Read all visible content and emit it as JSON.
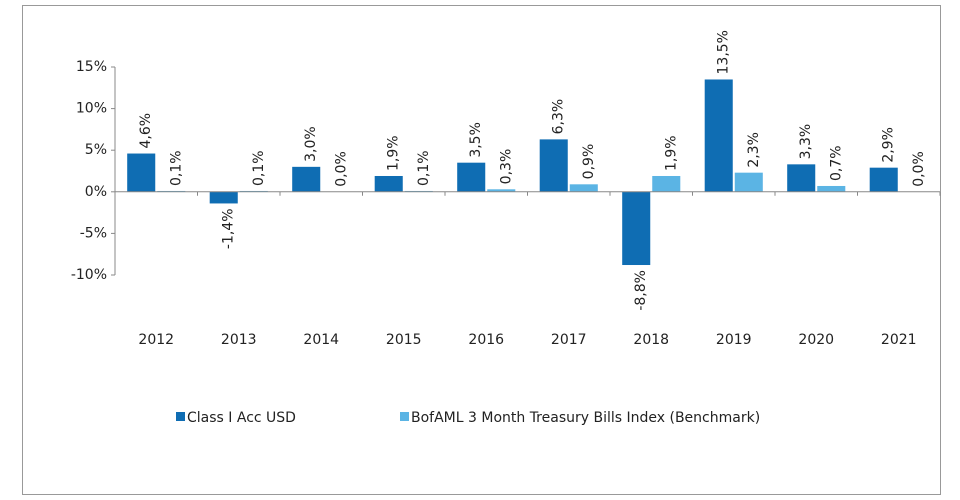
{
  "chart_data": {
    "type": "bar",
    "categories": [
      "2012",
      "2013",
      "2014",
      "2015",
      "2016",
      "2017",
      "2018",
      "2019",
      "2020",
      "2021"
    ],
    "series": [
      {
        "name": "Class I Acc USD",
        "color": "#0f6db3",
        "values": [
          4.6,
          -1.4,
          3.0,
          1.9,
          3.5,
          6.3,
          -8.8,
          13.5,
          3.3,
          2.9
        ],
        "value_labels": [
          "4,6%",
          "-1,4%",
          "3,0%",
          "1,9%",
          "3,5%",
          "6,3%",
          "-8,8%",
          "13,5%",
          "3,3%",
          "2,9%"
        ]
      },
      {
        "name": "BofAML 3 Month Treasury Bills Index (Benchmark)",
        "color": "#5bb4e4",
        "values": [
          0.1,
          0.1,
          0.0,
          0.1,
          0.3,
          0.9,
          1.9,
          2.3,
          0.7,
          0.0
        ],
        "value_labels": [
          "0,1%",
          "0,1%",
          "0,0%",
          "0,1%",
          "0,3%",
          "0,9%",
          "1,9%",
          "2,3%",
          "0,7%",
          "0,0%"
        ]
      }
    ],
    "ylim": [
      -10,
      15
    ],
    "yticks": [
      {
        "value": -10,
        "label": "-10%"
      },
      {
        "value": -5,
        "label": "-5%"
      },
      {
        "value": 0,
        "label": "0%"
      },
      {
        "value": 5,
        "label": "5%"
      },
      {
        "value": 10,
        "label": "10%"
      },
      {
        "value": 15,
        "label": "15%"
      }
    ]
  }
}
